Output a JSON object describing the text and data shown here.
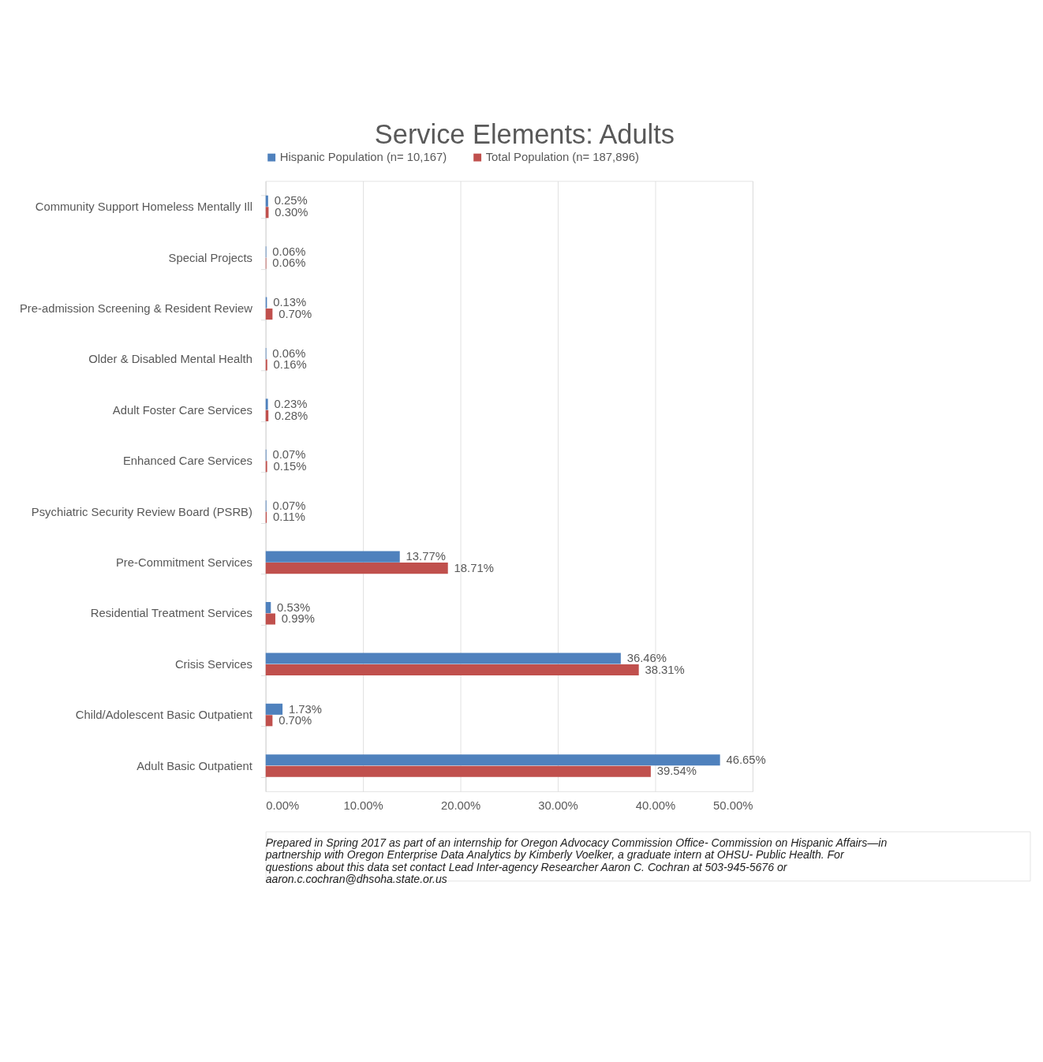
{
  "chart_data": {
    "type": "bar",
    "orientation": "horizontal",
    "title": "Service Elements: Adults",
    "categories": [
      "Community Support Homeless Mentally Ill",
      "Special Projects",
      "Pre-admission Screening & Resident Review",
      "Older & Disabled Mental Health",
      "Adult Foster Care Services",
      "Enhanced Care Services",
      "Psychiatric Security Review Board (PSRB)",
      "Pre-Commitment Services",
      "Residential Treatment Services",
      "Crisis Services",
      "Child/Adolescent Basic Outpatient",
      "Adult Basic Outpatient"
    ],
    "series": [
      {
        "name": "Hispanic Population (n= 10,167)",
        "color": "#4f81bd",
        "values": [
          0.25,
          0.06,
          0.13,
          0.06,
          0.23,
          0.07,
          0.07,
          13.77,
          0.53,
          36.46,
          1.73,
          46.65
        ],
        "value_labels": [
          "0.25%",
          "0.06%",
          "0.13%",
          "0.06%",
          "0.23%",
          "0.07%",
          "0.07%",
          "13.77%",
          "0.53%",
          "36.46%",
          "1.73%",
          "46.65%"
        ]
      },
      {
        "name": "Total Population (n= 187,896)",
        "color": "#c0504d",
        "values": [
          0.3,
          0.06,
          0.7,
          0.16,
          0.28,
          0.15,
          0.11,
          18.71,
          0.99,
          38.31,
          0.7,
          39.54
        ],
        "value_labels": [
          "0.30%",
          "0.06%",
          "0.70%",
          "0.16%",
          "0.28%",
          "0.15%",
          "0.11%",
          "18.71%",
          "0.99%",
          "38.31%",
          "0.70%",
          "39.54%"
        ]
      }
    ],
    "xlim": [
      0,
      50
    ],
    "xticks": [
      {
        "value": 0,
        "label": "0.00%"
      },
      {
        "value": 10,
        "label": "10.00%"
      },
      {
        "value": 20,
        "label": "20.00%"
      },
      {
        "value": 30,
        "label": "30.00%"
      },
      {
        "value": 40,
        "label": "40.00%"
      },
      {
        "value": 50,
        "label": "50.00%"
      }
    ],
    "grid": "x",
    "legend": "top",
    "annotations": [
      "Prepared in Spring 2017 as part of an internship for Oregon Advocacy Commission Office- Commission on Hispanic Affairs—in partnership with Oregon Enterprise Data Analytics by Kimberly Voelker, a graduate intern at OHSU- Public Health. For questions about this data set contact Lead Inter-agency Researcher Aaron C. Cochran at 503-945-5676 or aaron.c.cochran@dhsoha.state.or.us"
    ]
  }
}
